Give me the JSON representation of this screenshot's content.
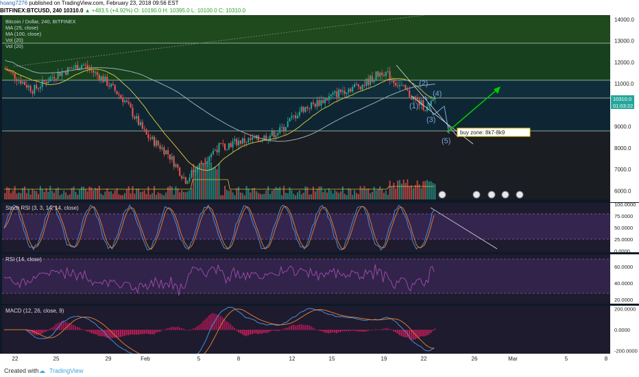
{
  "header": {
    "user": "hoang7276",
    "published": "published on TradingView.com, February 23, 2018 09:56 EST",
    "symbol": "BITFINEX:BTCUSD, 240",
    "last": "10310.0",
    "change": "+483.5 (+4.92%)",
    "o": "O: 10190.0",
    "h": "H: 10395.0",
    "l": "L: 10100.0",
    "c": "C: 10310.0"
  },
  "legend": {
    "title": "Bitcoin / Dollar, 240, BITFINEX",
    "ma25": "MA (25, close)",
    "ma100": "MA (100, close)",
    "vol1": "Vol (20)",
    "vol2": "Vol (20)"
  },
  "price_axis": {
    "ticks": [
      "14000.0",
      "13000.0",
      "12000.0",
      "11000.0",
      "9000.0",
      "8000.0",
      "7000.0",
      "6000.0"
    ],
    "last_price": "10310.0",
    "countdown": "01:03:22"
  },
  "annotations": {
    "waves": [
      "(1)",
      "(2)",
      "(3)",
      "(4)",
      "(5)"
    ],
    "buy_zone": "buy zone: 8k7-8k9"
  },
  "panes": {
    "stoch": {
      "label": "Stoch RSI (3, 3, 14, 14, close)",
      "ticks": [
        "100.0000",
        "75.0000",
        "50.0000",
        "25.0000",
        "0.0000"
      ]
    },
    "rsi": {
      "label": "RSI (14, close)",
      "ticks": [
        "60.0000",
        "40.0000",
        "20.0000"
      ]
    },
    "macd": {
      "label": "MACD (12, 26, close, 9)",
      "ticks": [
        "200.0000",
        "0.0000",
        "-200.0000"
      ]
    }
  },
  "time_axis": {
    "ticks": [
      "22",
      "25",
      "29",
      "Feb",
      "5",
      "8",
      "12",
      "15",
      "19",
      "22",
      "26",
      "Mar",
      "5",
      "8"
    ]
  },
  "footer": {
    "created": "Created with",
    "brand": "TradingView"
  },
  "colors": {
    "up": "#26a69a",
    "down": "#ef5350",
    "ma25": "#d4c23a",
    "ma100": "#9bb0b8",
    "arrow": "#00cc00",
    "wave": "#7fa7d9",
    "pane_bg": "#1e1b2e",
    "price_bg": "#0c1a26"
  },
  "chart_data": {
    "type": "candlestick",
    "y_axis": {
      "range": [
        5600,
        14200
      ]
    },
    "key_levels": [
      12800,
      11100,
      10520,
      8750
    ],
    "ma_notes": "MA25 yellow, MA100 grey-blue",
    "last_price": 10310.0,
    "open": 10190.0,
    "high": 10395.0,
    "low": 10100.0,
    "close": 10310.0,
    "stoch_rsi_range": [
      0,
      100
    ],
    "rsi_levels": [
      70,
      30
    ],
    "macd_range": [
      -200,
      200
    ]
  }
}
